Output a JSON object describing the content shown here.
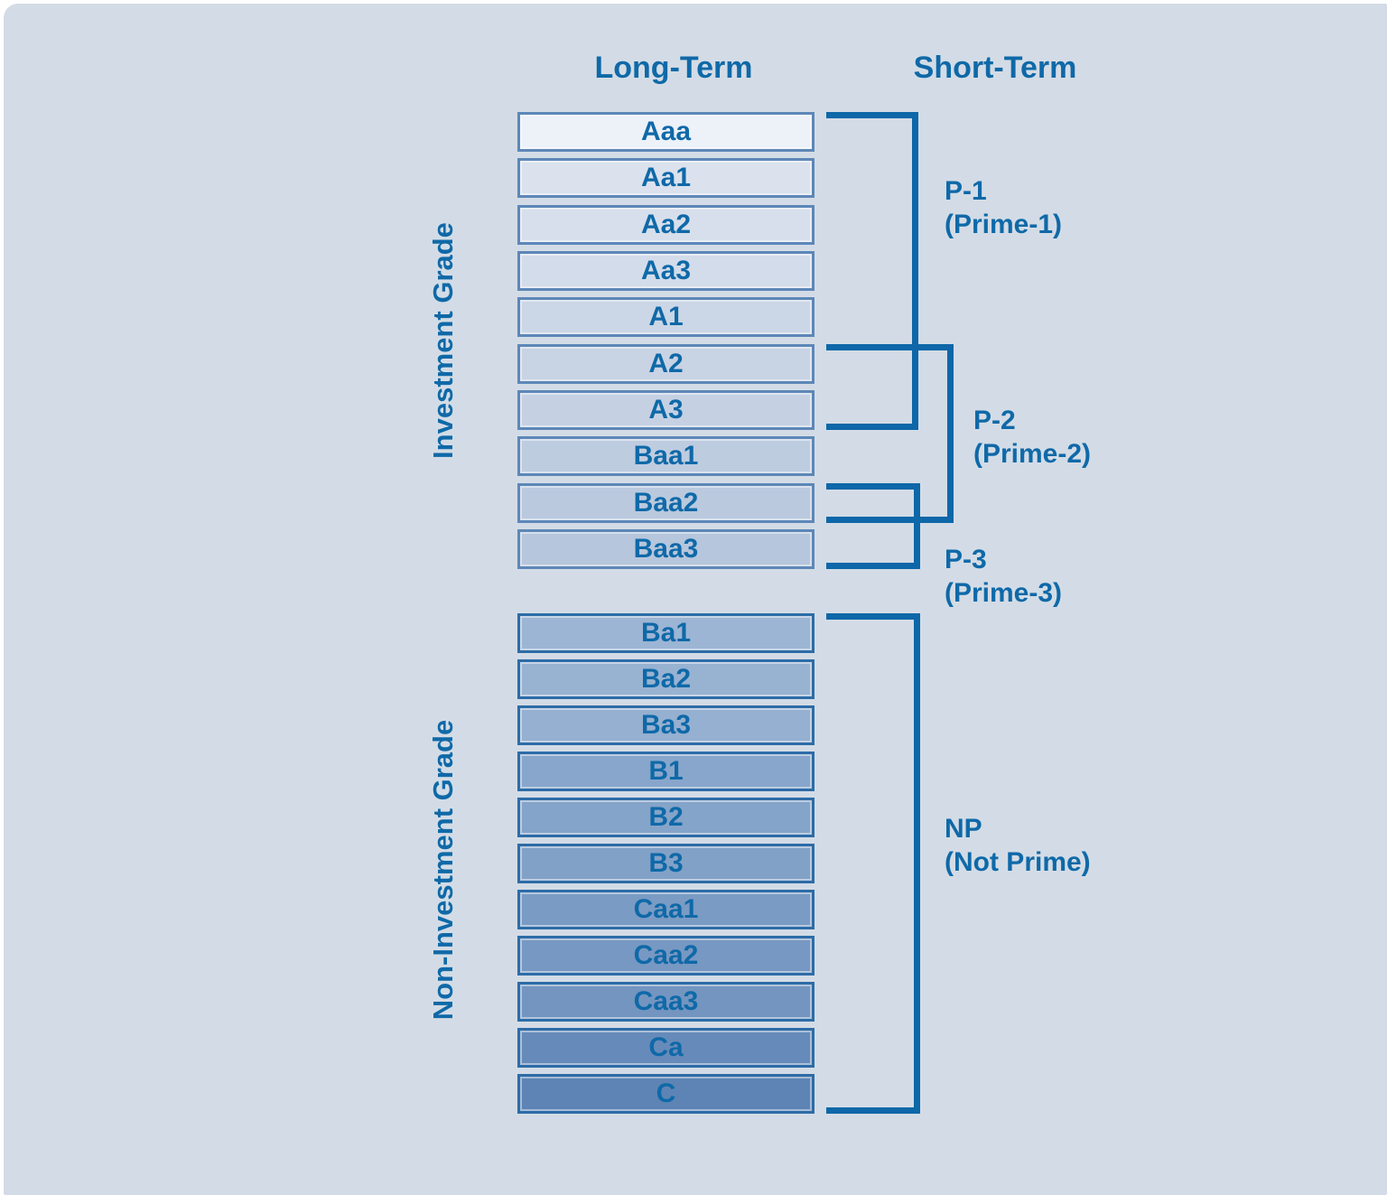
{
  "headers": {
    "long_term": "Long-Term",
    "short_term": "Short-Term"
  },
  "colors": {
    "page_background": "#ffffff",
    "panel_background": "#d3dce6",
    "text_blue": "#0f69a8",
    "bracket_line": "#0d67a8",
    "investment_box_border": "#5d87b8",
    "non_investment_box_border": "#2d6ca7"
  },
  "groups": {
    "investment": {
      "label": "Investment Grade",
      "ratings": [
        {
          "label": "Aaa",
          "fill": "#edf1f8"
        },
        {
          "label": "Aa1",
          "fill": "#dbe2ee"
        },
        {
          "label": "Aa2",
          "fill": "#d7dfec"
        },
        {
          "label": "Aa3",
          "fill": "#d3dcea"
        },
        {
          "label": "A1",
          "fill": "#cbd6e6"
        },
        {
          "label": "A2",
          "fill": "#c8d3e4"
        },
        {
          "label": "A3",
          "fill": "#c5d1e3"
        },
        {
          "label": "Baa1",
          "fill": "#becce0"
        },
        {
          "label": "Baa2",
          "fill": "#bac9de"
        },
        {
          "label": "Baa3",
          "fill": "#b6c6dc"
        }
      ]
    },
    "non_investment": {
      "label": "Non-Investment Grade",
      "ratings": [
        {
          "label": "Ba1",
          "fill": "#9cb5d4"
        },
        {
          "label": "Ba2",
          "fill": "#98b2d2"
        },
        {
          "label": "Ba3",
          "fill": "#95b0d0"
        },
        {
          "label": "B1",
          "fill": "#88a6cb"
        },
        {
          "label": "B2",
          "fill": "#85a4c9"
        },
        {
          "label": "B3",
          "fill": "#82a1c7"
        },
        {
          "label": "Caa1",
          "fill": "#7a9bc4"
        },
        {
          "label": "Caa2",
          "fill": "#7798c2"
        },
        {
          "label": "Caa3",
          "fill": "#7395c0"
        },
        {
          "label": "Ca",
          "fill": "#668bba"
        },
        {
          "label": "C",
          "fill": "#5d84b5"
        }
      ]
    }
  },
  "short_term_ratings": [
    {
      "id": "p1",
      "code": "P-1",
      "name": "(Prime-1)",
      "covers_from": "Aaa",
      "covers_to": "A3"
    },
    {
      "id": "p2",
      "code": "P-2",
      "name": "(Prime-2)",
      "covers_from": "A2",
      "covers_to": "Baa2"
    },
    {
      "id": "p3",
      "code": "P-3",
      "name": "(Prime-3)",
      "covers_from": "Baa2",
      "covers_to": "Baa3"
    },
    {
      "id": "np",
      "code": "NP",
      "name": "(Not Prime)",
      "covers_from": "Ba1",
      "covers_to": "C"
    }
  ]
}
